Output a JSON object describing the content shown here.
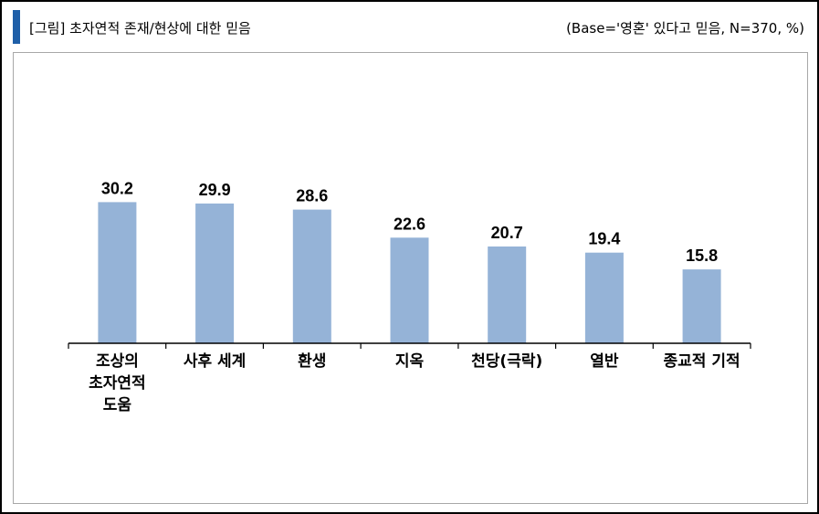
{
  "header": {
    "title": "[그림] 초자연적 존재/현상에 대한 믿음",
    "base_note": "(Base='영혼' 있다고 믿음, N=370, %)"
  },
  "colors": {
    "accent": "#1f5fa8",
    "bar": "#95b3d7"
  },
  "chart_data": {
    "type": "bar",
    "title": "[그림] 초자연적 존재/현상에 대한 믿음",
    "categories": [
      [
        "조상의",
        "초자연적",
        "도움"
      ],
      [
        "사후 세계"
      ],
      [
        "환생"
      ],
      [
        "지옥"
      ],
      [
        "천당(극락)"
      ],
      [
        "열반"
      ],
      [
        "종교적 기적"
      ]
    ],
    "values": [
      30.2,
      29.9,
      28.6,
      22.6,
      20.7,
      19.4,
      15.8
    ],
    "value_labels": [
      "30.2",
      "29.9",
      "28.6",
      "22.6",
      "20.7",
      "19.4",
      "15.8"
    ],
    "ylim": [
      0,
      50
    ],
    "grid": false,
    "legend": "none",
    "data_labels": true
  }
}
